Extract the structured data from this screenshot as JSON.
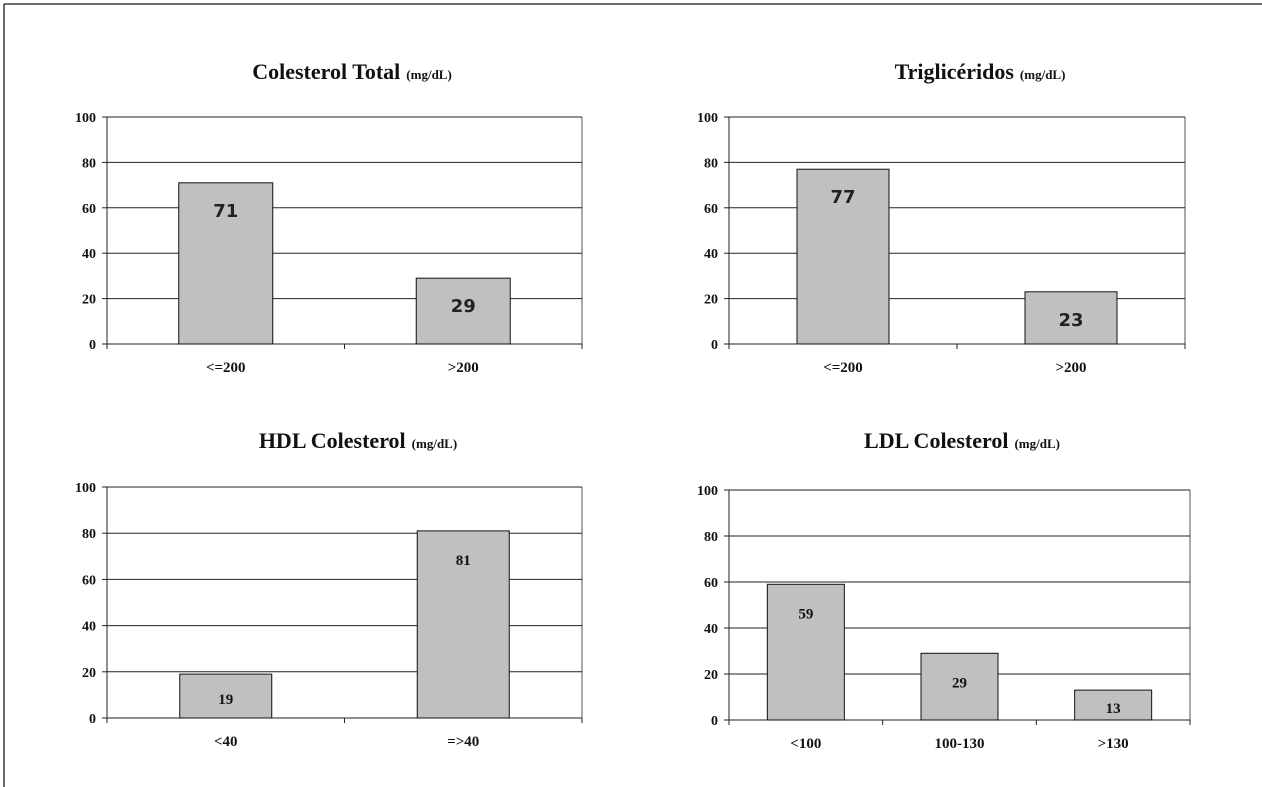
{
  "chart_data": [
    {
      "type": "bar",
      "title": "Colesterol Total",
      "unit": "(mg/dL)",
      "categories": [
        "<=200",
        ">200"
      ],
      "values": [
        71,
        29
      ],
      "ylim": [
        0,
        100
      ],
      "yticks": [
        0,
        20,
        40,
        60,
        80,
        100
      ],
      "grid": true,
      "data_labels": true
    },
    {
      "type": "bar",
      "title": "Triglicéridos",
      "unit": "(mg/dL)",
      "categories": [
        "<=200",
        ">200"
      ],
      "values": [
        77,
        23
      ],
      "ylim": [
        0,
        100
      ],
      "yticks": [
        0,
        20,
        40,
        60,
        80,
        100
      ],
      "grid": true,
      "data_labels": true
    },
    {
      "type": "bar",
      "title": "HDL Colesterol",
      "unit": "(mg/dL)",
      "categories": [
        "<40",
        "=>40"
      ],
      "values": [
        19,
        81
      ],
      "ylim": [
        0,
        100
      ],
      "yticks": [
        0,
        20,
        40,
        60,
        80,
        100
      ],
      "grid": true,
      "data_labels": true
    },
    {
      "type": "bar",
      "title": "LDL Colesterol",
      "unit": "(mg/dL)",
      "categories": [
        "<100",
        "100-130",
        ">130"
      ],
      "values": [
        59,
        29,
        13
      ],
      "ylim": [
        0,
        100
      ],
      "yticks": [
        0,
        20,
        40,
        60,
        80,
        100
      ],
      "grid": true,
      "data_labels": true
    }
  ],
  "colors": {
    "bar_fill": "#c0c0c0",
    "bar_stroke": "#111111",
    "grid": "#222222",
    "background": "#ffffff"
  }
}
